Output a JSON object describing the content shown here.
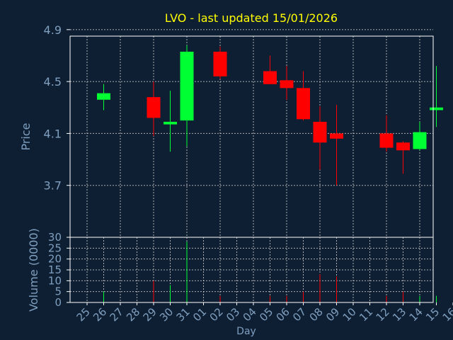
{
  "chart_data": {
    "type": "candlestick",
    "title": "LVO - last updated 15/01/2026",
    "price_axis": {
      "label": "Price",
      "ylim": [
        3.3,
        4.85
      ],
      "ticks": [
        "3.7",
        "4.1",
        "4.5",
        "4.9"
      ],
      "grid": true
    },
    "volume_axis": {
      "label": "Volume (0000)",
      "ylim": [
        0,
        30
      ],
      "ticks": [
        "0",
        "5",
        "10",
        "15",
        "20",
        "25",
        "30"
      ],
      "grid": true
    },
    "x_axis": {
      "label": "Day",
      "ticks": [
        "25",
        "26",
        "27",
        "28",
        "29",
        "30",
        "31",
        "01",
        "02",
        "03",
        "04",
        "05",
        "06",
        "07",
        "08",
        "09",
        "10",
        "11",
        "12",
        "13",
        "14",
        "15",
        "16"
      ]
    },
    "colors": {
      "background": "#0f1f33",
      "axis": "#ffffff",
      "grid": "#c8c8c8",
      "title": "#ffff00",
      "label": "#7f9fbf",
      "up": "#00ff33",
      "down": "#ff0000"
    },
    "candles": [
      {
        "day": "26",
        "open": 4.36,
        "high": 4.48,
        "low": 4.28,
        "close": 4.41,
        "volume": 5
      },
      {
        "day": "29",
        "open": 4.38,
        "high": 4.5,
        "low": 4.08,
        "close": 4.22,
        "volume": 10
      },
      {
        "day": "30",
        "open": 4.17,
        "high": 4.43,
        "low": 3.96,
        "close": 4.19,
        "volume": 8
      },
      {
        "day": "31",
        "open": 4.2,
        "high": 4.78,
        "low": 4.0,
        "close": 4.73,
        "volume": 28
      },
      {
        "day": "02",
        "open": 4.73,
        "high": 4.77,
        "low": 4.52,
        "close": 4.54,
        "volume": 3
      },
      {
        "day": "05",
        "open": 4.58,
        "high": 4.7,
        "low": 4.48,
        "close": 4.48,
        "volume": 3
      },
      {
        "day": "06",
        "open": 4.51,
        "high": 4.62,
        "low": 4.36,
        "close": 4.45,
        "volume": 3
      },
      {
        "day": "07",
        "open": 4.45,
        "high": 4.58,
        "low": 4.2,
        "close": 4.21,
        "volume": 5
      },
      {
        "day": "08",
        "open": 4.19,
        "high": 4.31,
        "low": 3.82,
        "close": 4.03,
        "volume": 13
      },
      {
        "day": "09",
        "open": 4.1,
        "high": 4.32,
        "low": 3.7,
        "close": 4.06,
        "volume": 12
      },
      {
        "day": "12",
        "open": 4.1,
        "high": 4.24,
        "low": 3.96,
        "close": 3.99,
        "volume": 3
      },
      {
        "day": "13",
        "open": 4.03,
        "high": 4.04,
        "low": 3.79,
        "close": 3.97,
        "volume": 5
      },
      {
        "day": "14",
        "open": 3.98,
        "high": 4.19,
        "low": 3.97,
        "close": 4.11,
        "volume": 3
      },
      {
        "day": "15",
        "open": 4.28,
        "high": 4.62,
        "low": 4.15,
        "close": 4.3,
        "volume": 3
      }
    ]
  }
}
